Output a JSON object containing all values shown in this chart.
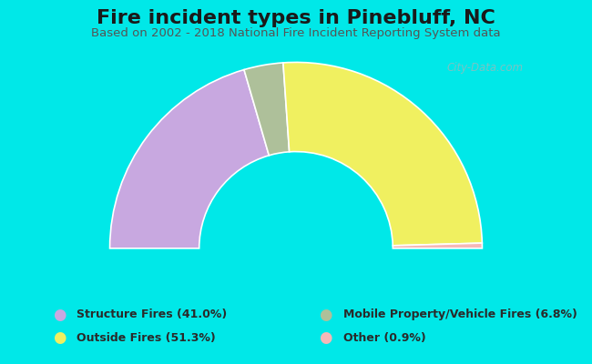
{
  "title": "Fire incident types in Pinebluff, NC",
  "subtitle": "Based on 2002 - 2018 National Fire Incident Reporting System data",
  "background_color": "#00e8e8",
  "chart_bg_color": "#e8f5e8",
  "watermark": "City-Data.com",
  "categories": [
    "Structure Fires (41.0%)",
    "Outside Fires (51.3%)",
    "Mobile Property/Vehicle Fires (6.8%)",
    "Other (0.9%)"
  ],
  "values": [
    41.0,
    51.3,
    6.8,
    0.9
  ],
  "colors": [
    "#c8a8e0",
    "#f0f060",
    "#aec09a",
    "#f5b8b8"
  ],
  "legend_colors": [
    "#c8a8e0",
    "#f0f060",
    "#aec09a",
    "#f5b8b8"
  ],
  "total": 100.0,
  "title_fontsize": 16,
  "subtitle_fontsize": 9.5,
  "title_color": "#1a1a1a",
  "subtitle_color": "#555555",
  "legend_fontsize": 9,
  "outer_r": 1.0,
  "inner_r": 0.52
}
